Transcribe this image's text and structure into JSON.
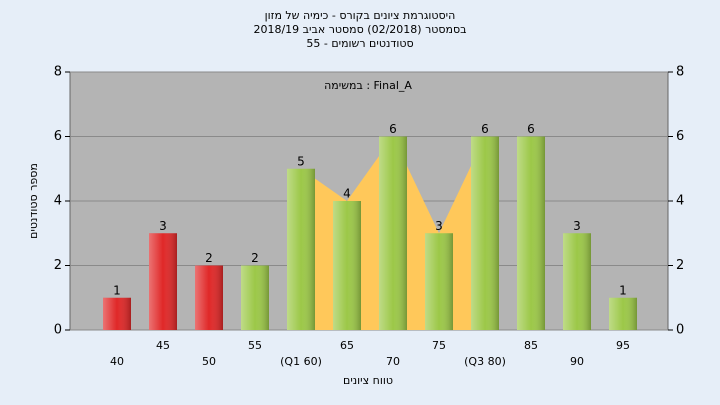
{
  "chart_data": {
    "type": "bar",
    "title_lines": [
      "היסטוגרמת ציונים בקורס - כימיה של מזון",
      "בסמסטר  (02/2018)  סמסטר אביב 2018/19",
      "55 - סטודנטים רשומים"
    ],
    "annotation": "במשימה : Final_A",
    "y_label": "מספר סטודנטים",
    "x_label": "טווח ציונים",
    "categories": [
      "40",
      "45",
      "50",
      "55",
      "(Q1 60)",
      "65",
      "70",
      "75",
      "(Q3 80)",
      "85",
      "90",
      "95"
    ],
    "values": [
      1,
      3,
      2,
      2,
      5,
      4,
      6,
      3,
      6,
      6,
      3,
      1
    ],
    "colors": [
      "#e02828",
      "#e02828",
      "#e02828",
      "#9cc848",
      "#9cc848",
      "#9cc848",
      "#9cc848",
      "#9cc848",
      "#9cc848",
      "#9cc848",
      "#9cc848",
      "#9cc848"
    ],
    "quartile_color": "#ffc85a",
    "ylim": [
      0,
      8
    ],
    "yticks": [
      0,
      2,
      4,
      6,
      8
    ],
    "grid": true
  }
}
